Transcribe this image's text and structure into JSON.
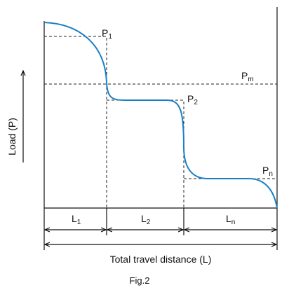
{
  "figure": {
    "labels": {
      "p1": {
        "base": "P",
        "sub": "1"
      },
      "pm": {
        "base": "P",
        "sub": "m"
      },
      "p2": {
        "base": "P",
        "sub": "2"
      },
      "pn": {
        "base": "P",
        "sub": "n"
      },
      "l1": {
        "base": "L",
        "sub": "1"
      },
      "l2": {
        "base": "L",
        "sub": "2"
      },
      "ln": {
        "base": "L",
        "sub": "n"
      }
    },
    "y_axis_label": "Load (P)",
    "x_axis_label": "Total travel distance (L)",
    "caption": "Fig.2"
  }
}
